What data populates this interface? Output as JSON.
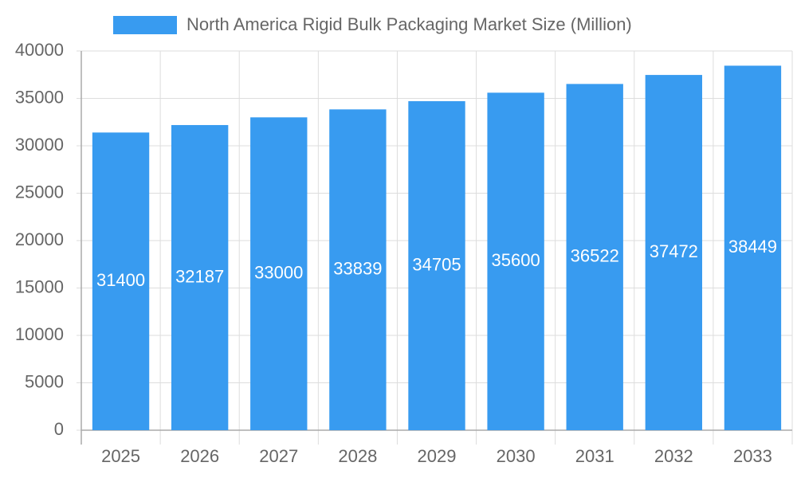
{
  "chart_data": {
    "type": "bar",
    "categories": [
      "2025",
      "2026",
      "2027",
      "2028",
      "2029",
      "2030",
      "2031",
      "2032",
      "2033"
    ],
    "series": [
      {
        "name": "North America Rigid Bulk Packaging Market Size (Million)",
        "color": "#389bf0",
        "values": [
          31400,
          32187,
          33000,
          33839,
          34705,
          35600,
          36522,
          37472,
          38449
        ]
      }
    ],
    "ylim": [
      0,
      40000
    ],
    "yticks": [
      0,
      5000,
      10000,
      15000,
      20000,
      25000,
      30000,
      35000,
      40000
    ],
    "grid": true,
    "legend": "top",
    "data_labels": true
  }
}
